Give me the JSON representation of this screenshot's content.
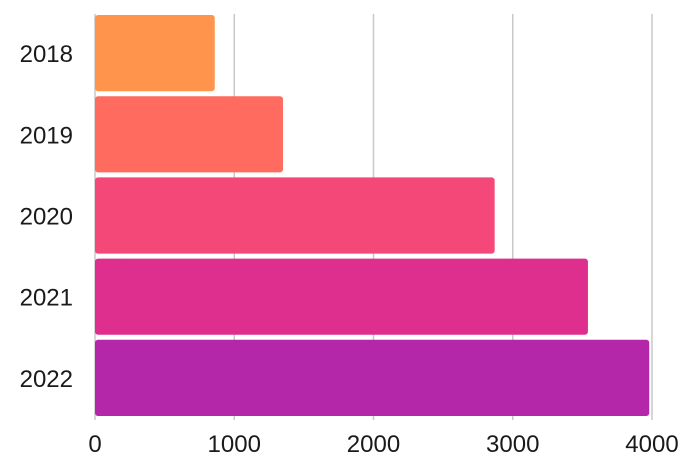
{
  "chart_data": {
    "type": "bar",
    "orientation": "horizontal",
    "categories": [
      "2018",
      "2019",
      "2020",
      "2021",
      "2022"
    ],
    "values": [
      860,
      1350,
      2870,
      3540,
      3980
    ],
    "colors": [
      "#ff944d",
      "#ff6b5e",
      "#f44878",
      "#df2f8e",
      "#b327a8"
    ],
    "x_ticks": [
      "0",
      "1000",
      "2000",
      "3000",
      "4000"
    ],
    "xlim": [
      0,
      4000
    ],
    "grid": "vertical",
    "title": "",
    "xlabel": "",
    "ylabel": ""
  }
}
